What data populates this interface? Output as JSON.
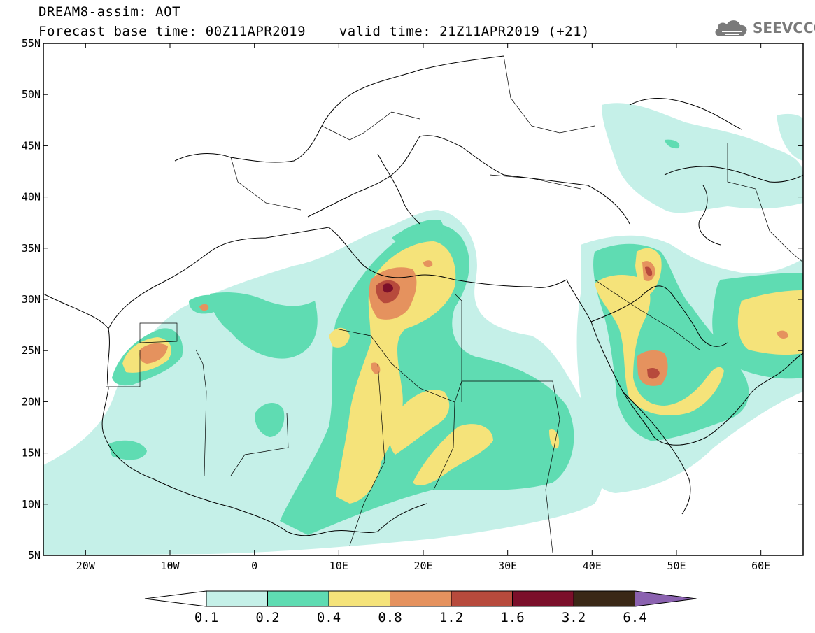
{
  "header": {
    "title": "DREAM8-assim: AOT",
    "subtitle": "Forecast base time: 00Z11APR2019    valid time: 21Z11APR2019 (+21)"
  },
  "logo": {
    "text": "SEEVCCC",
    "icon": "cloud-icon",
    "color": "#7a7a7a"
  },
  "map": {
    "lon_range": [
      -25,
      65
    ],
    "lat_range": [
      5,
      55
    ],
    "lat_ticks": [
      "55N",
      "50N",
      "45N",
      "40N",
      "35N",
      "30N",
      "25N",
      "20N",
      "15N",
      "10N",
      "5N"
    ],
    "lon_ticks": [
      "20W",
      "10W",
      "0",
      "10E",
      "20E",
      "30E",
      "40E",
      "50E",
      "60E"
    ]
  },
  "colorbar": {
    "levels": [
      "0.1",
      "0.2",
      "0.4",
      "0.8",
      "1.2",
      "1.6",
      "3.2",
      "6.4"
    ],
    "colors": [
      "#ffffff",
      "#c5f0e8",
      "#5fdcb2",
      "#f5e37a",
      "#e5925e",
      "#b74a3c",
      "#7b0f2a",
      "#3a2816",
      "#8b62b0"
    ]
  }
}
